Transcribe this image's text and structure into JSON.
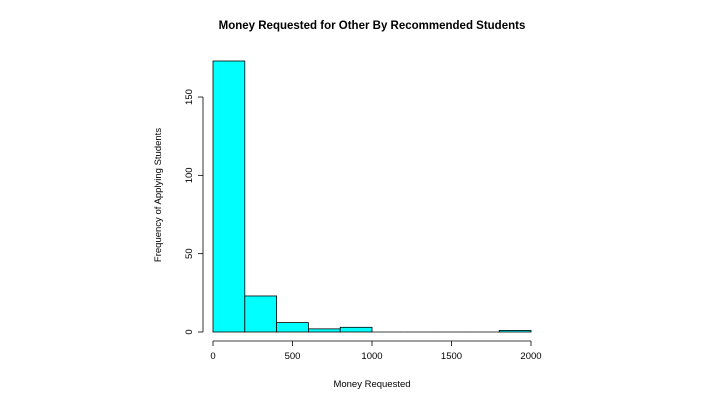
{
  "chart_data": {
    "type": "bar",
    "title": "Money Requested for Other By Recommended Students",
    "xlabel": "Money Requested",
    "ylabel": "Frequency of Applying Students",
    "bar_color": "#00ffff",
    "bins": [
      {
        "x0": 0,
        "x1": 200,
        "count": 173
      },
      {
        "x0": 200,
        "x1": 400,
        "count": 23
      },
      {
        "x0": 400,
        "x1": 600,
        "count": 6
      },
      {
        "x0": 600,
        "x1": 800,
        "count": 2
      },
      {
        "x0": 800,
        "x1": 1000,
        "count": 3
      },
      {
        "x0": 1000,
        "x1": 1200,
        "count": 0
      },
      {
        "x0": 1200,
        "x1": 1400,
        "count": 0
      },
      {
        "x0": 1400,
        "x1": 1600,
        "count": 0
      },
      {
        "x0": 1600,
        "x1": 1800,
        "count": 0
      },
      {
        "x0": 1800,
        "x1": 2000,
        "count": 1
      }
    ],
    "xlim": [
      0,
      2000
    ],
    "ylim": [
      0,
      173
    ],
    "x_ticks": [
      "0",
      "500",
      "1000",
      "1500",
      "2000"
    ],
    "y_ticks": [
      "0",
      "50",
      "100",
      "150"
    ],
    "grid": false
  }
}
